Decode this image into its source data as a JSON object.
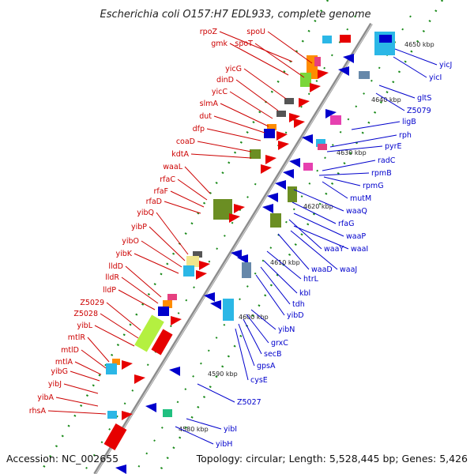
{
  "title": "Escherichia coli O157:H7 EDL933, complete genome",
  "footer": {
    "accession": "Accession: NC_002655",
    "summary": "Topology: circular; Length: 5,528,445 bp; Genes: 5,426"
  },
  "ticks": [
    "4650 kbp",
    "4640 kbp",
    "4630 kbp",
    "4620 kbp",
    "4610 kbp",
    "4600 kbp",
    "4590 kbp",
    "4580 kbp"
  ],
  "colors": {
    "forward_label": "#cc0000",
    "reverse_label": "#0000cc",
    "axis": "#999999"
  },
  "left_labels": [
    "rpoZ",
    "spoU",
    "gmk",
    "spoT",
    "yicG",
    "dinD",
    "yicC",
    "slmA",
    "dut",
    "dfp",
    "coaD",
    "kdtA",
    "waaL",
    "rfaC",
    "rfaF",
    "rfaD",
    "yibQ",
    "yibP",
    "yibO",
    "yibK",
    "lldD",
    "lldR",
    "lldP",
    "Z5029",
    "Z5028",
    "yibL",
    "mtlR",
    "mtlD",
    "mtlA",
    "yibG",
    "yibJ",
    "yibA",
    "rhsA"
  ],
  "right_labels": [
    "yicJ",
    "yicI",
    "gltS",
    "Z5079",
    "ligB",
    "rph",
    "pyrE",
    "radC",
    "rpmB",
    "rpmG",
    "mutM",
    "waaQ",
    "rfaG",
    "waaP",
    "waaY",
    "waaI",
    "waaJ",
    "waaD",
    "htrL",
    "kbl",
    "tdh",
    "yibD",
    "yibN",
    "grxC",
    "secB",
    "gpsA",
    "cysE",
    "Z5027",
    "yibI",
    "yibH"
  ]
}
